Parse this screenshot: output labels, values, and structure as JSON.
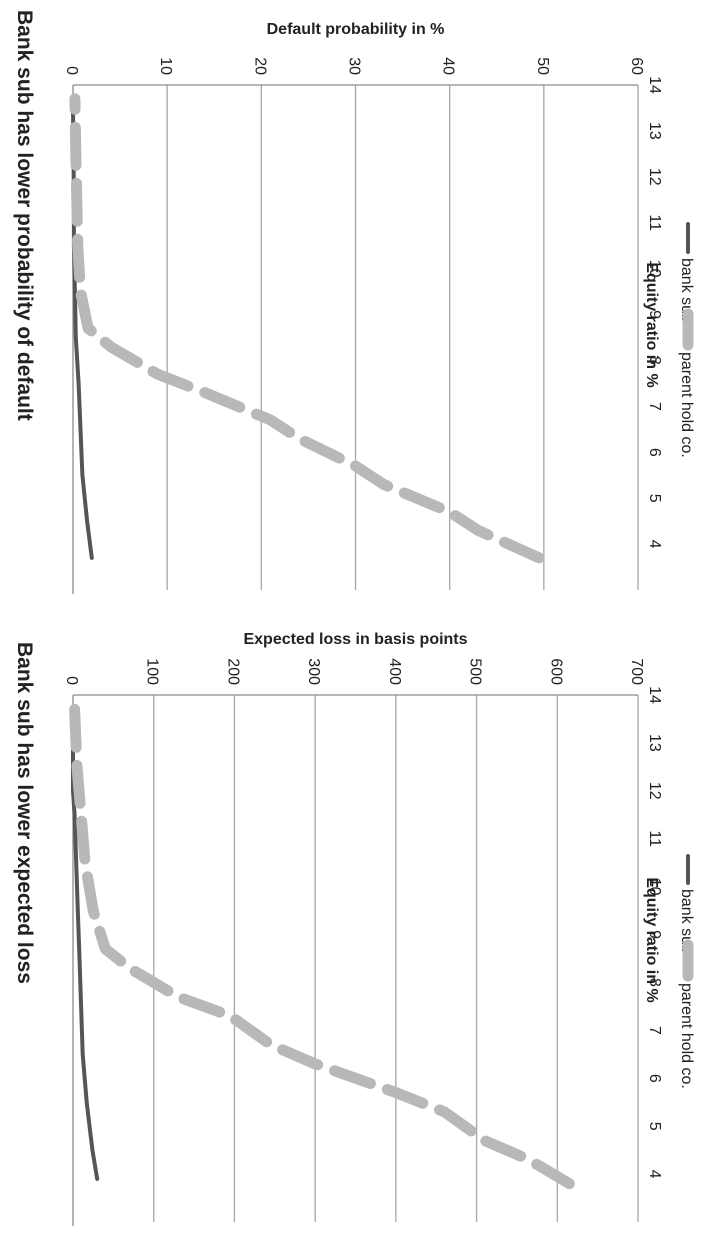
{
  "page": {
    "orientation": "rotated 90° clockwise"
  },
  "colors": {
    "bank_sub": "#555555",
    "parent_hold": "#b8b8b8",
    "grid": "#a6a6a6",
    "axis": "#8c8c8c",
    "text": "#222222"
  },
  "chart_data": [
    {
      "type": "line",
      "title": "Bank sub has lower probability of default",
      "xlabel": "Equity ratio in %",
      "ylabel": "Default probability in %",
      "x_ticks": [
        "4",
        "5",
        "6",
        "7",
        "8",
        "9",
        "10",
        "11",
        "12",
        "13",
        "14"
      ],
      "y_ticks": [
        "0",
        "10",
        "20",
        "30",
        "40",
        "50",
        "60"
      ],
      "xlim": [
        14,
        3
      ],
      "ylim": [
        0,
        60
      ],
      "grid": true,
      "legend_position": "bottom",
      "series": [
        {
          "name": "bank sub",
          "style": "thin-solid",
          "color": "#555555",
          "x": [
            3.7,
            4.5,
            5.5,
            6.5,
            7.5,
            8.5,
            9.5,
            10.5,
            11.5,
            12.5,
            13.5
          ],
          "y": [
            2.0,
            1.5,
            1.0,
            0.8,
            0.6,
            0.3,
            0.2,
            0.1,
            0.1,
            0.05,
            0.0
          ]
        },
        {
          "name": "parent hold co.",
          "style": "thick-dashed",
          "color": "#b8b8b8",
          "x": [
            3.7,
            4.3,
            4.7,
            5.3,
            5.7,
            6.3,
            6.7,
            7.3,
            7.7,
            8.3,
            8.7,
            9.5,
            10.5,
            11.5,
            12.5,
            13.7
          ],
          "y": [
            49.5,
            43,
            40,
            33,
            30,
            24,
            21,
            14,
            9,
            4,
            1.6,
            0.8,
            0.5,
            0.4,
            0.3,
            0.2
          ]
        }
      ]
    },
    {
      "type": "line",
      "title": "Bank sub has lower expected loss",
      "xlabel": "Equity ratio in %",
      "ylabel": "Expected loss in basis points",
      "x_ticks": [
        "4",
        "5",
        "6",
        "7",
        "8",
        "9",
        "10",
        "11",
        "12",
        "13",
        "14"
      ],
      "y_ticks": [
        "0",
        "100",
        "200",
        "300",
        "400",
        "500",
        "600",
        "700"
      ],
      "xlim": [
        14,
        3
      ],
      "ylim": [
        0,
        700
      ],
      "grid": true,
      "legend_position": "bottom",
      "series": [
        {
          "name": "bank sub",
          "style": "thin-solid",
          "color": "#555555",
          "x": [
            3.9,
            4.5,
            5.5,
            6.5,
            7.5,
            8.5,
            9.5,
            10.5,
            11.5,
            12.0,
            12.5,
            13.5
          ],
          "y": [
            30,
            24,
            17,
            12,
            10,
            8,
            6,
            4,
            2,
            0,
            0,
            0
          ]
        },
        {
          "name": "parent hold co.",
          "style": "thick-dashed",
          "color": "#b8b8b8",
          "x": [
            3.8,
            4.3,
            4.7,
            5.3,
            5.7,
            6.3,
            6.7,
            7.3,
            7.7,
            8.3,
            8.7,
            9.5,
            10.5,
            11.5,
            12.5,
            13.7
          ],
          "y": [
            615,
            565,
            510,
            460,
            400,
            300,
            245,
            195,
            130,
            70,
            40,
            25,
            15,
            10,
            5,
            2
          ]
        }
      ]
    }
  ]
}
